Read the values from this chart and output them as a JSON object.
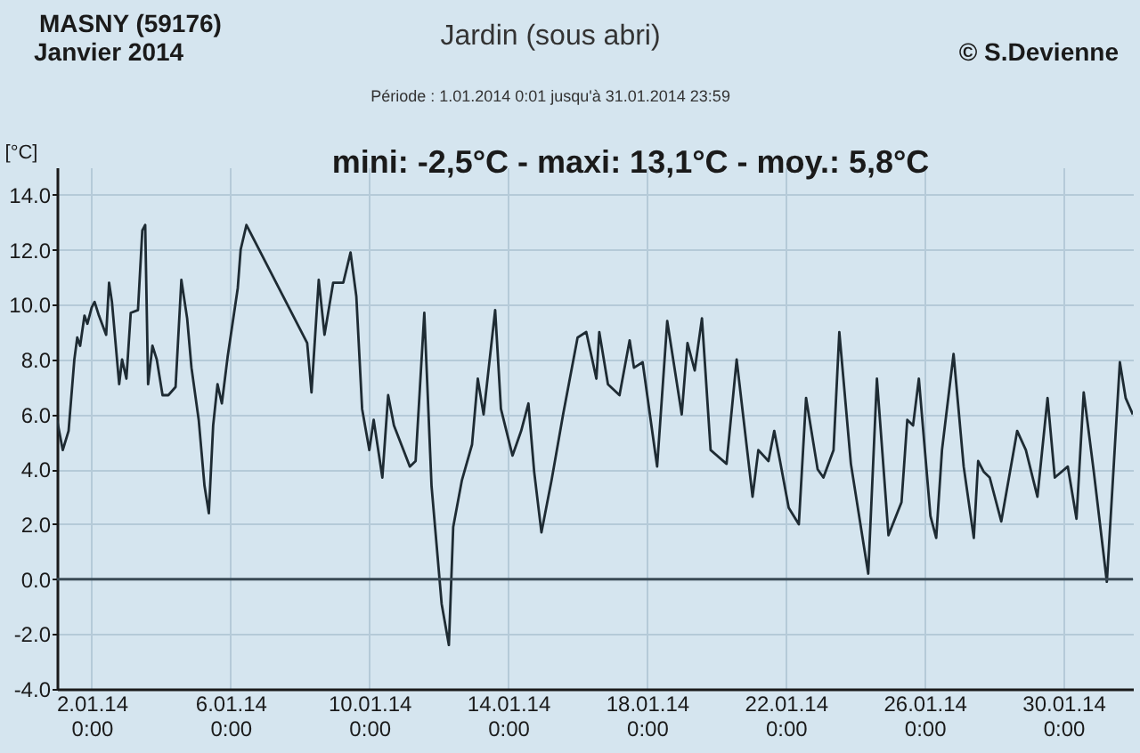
{
  "chart_data": {
    "type": "line",
    "title": "Jardin (sous abri)",
    "subtitle": "Période :  1.01.2014   0:01   jusqu'à  31.01.2014   23:59",
    "ylabel": "[°C]",
    "annotations": [
      "MASNY (59176)",
      "Janvier  2014",
      "© S.Devienne",
      "mini:  -2,5°C - maxi: 13,1°C - moy.: 5,8°C"
    ],
    "x": [
      "2014-01-01T00:01",
      "2014-01-01T04:00",
      "2014-01-01T08:00",
      "2014-01-01T12:00",
      "2014-01-01T14:00",
      "2014-01-01T16:00",
      "2014-01-01T19:00",
      "2014-01-01T21:00",
      "2014-01-02T00:00",
      "2014-01-02T02:00",
      "2014-01-02T05:00",
      "2014-01-02T10:00",
      "2014-01-02T12:00",
      "2014-01-02T14:00",
      "2014-01-02T19:00",
      "2014-01-02T21:00",
      "2014-01-03T00:00",
      "2014-01-03T03:00",
      "2014-01-03T08:00",
      "2014-01-03T11:00",
      "2014-01-03T13:00",
      "2014-01-03T15:00",
      "2014-01-03T18:00",
      "2014-01-03T21:00",
      "2014-01-04T01:00",
      "2014-01-04T05:00",
      "2014-01-04T10:00",
      "2014-01-04T14:00",
      "2014-01-04T18:00",
      "2014-01-04T21:00",
      "2014-01-05T02:00",
      "2014-01-05T06:00",
      "2014-01-05T09:00",
      "2014-01-05T12:00",
      "2014-01-05T15:00",
      "2014-01-05T18:00",
      "2014-01-05T22:00",
      "2014-01-06T05:00",
      "2014-01-06T07:00",
      "2014-01-06T11:00",
      "2014-01-08T05:00",
      "2014-01-08T08:00",
      "2014-01-08T13:00",
      "2014-01-08T17:00",
      "2014-01-08T23:00",
      "2014-01-09T06:00",
      "2014-01-09T11:00",
      "2014-01-09T15:00",
      "2014-01-09T19:00",
      "2014-01-10T00:00",
      "2014-01-10T03:00",
      "2014-01-10T09:00",
      "2014-01-10T13:00",
      "2014-01-10T17:00",
      "2014-01-11T04:00",
      "2014-01-11T08:00",
      "2014-01-11T14:00",
      "2014-01-11T19:00",
      "2014-01-12T02:00",
      "2014-01-12T07:00",
      "2014-01-12T10:00",
      "2014-01-12T16:00",
      "2014-01-12T23:00",
      "2014-01-13T03:00",
      "2014-01-13T07:00",
      "2014-01-13T15:00",
      "2014-01-13T19:00",
      "2014-01-14T03:00",
      "2014-01-14T09:00",
      "2014-01-14T14:00",
      "2014-01-14T18:00",
      "2014-01-14T23:00",
      "2014-01-15T06:00",
      "2014-01-15T14:00",
      "2014-01-16T00:00",
      "2014-01-16T06:00",
      "2014-01-16T13:00",
      "2014-01-16T15:00",
      "2014-01-16T21:00",
      "2014-01-17T05:00",
      "2014-01-17T12:00",
      "2014-01-17T15:00",
      "2014-01-17T21:00",
      "2014-01-18T07:00",
      "2014-01-18T14:00",
      "2014-01-19T00:00",
      "2014-01-19T04:00",
      "2014-01-19T09:00",
      "2014-01-19T14:00",
      "2014-01-19T20:00",
      "2014-01-20T07:00",
      "2014-01-20T14:00",
      "2014-01-21T01:00",
      "2014-01-21T05:00",
      "2014-01-21T12:00",
      "2014-01-21T16:00",
      "2014-01-21T20:00",
      "2014-01-22T02:00",
      "2014-01-22T09:00",
      "2014-01-22T14:00",
      "2014-01-22T22:00",
      "2014-01-23T02:00",
      "2014-01-23T09:00",
      "2014-01-23T13:00",
      "2014-01-23T21:00",
      "2014-01-24T09:00",
      "2014-01-24T15:00",
      "2014-01-24T23:00",
      "2014-01-25T08:00",
      "2014-01-25T12:00",
      "2014-01-25T16:00",
      "2014-01-25T20:00",
      "2014-01-26T04:00",
      "2014-01-26T08:00",
      "2014-01-26T12:00",
      "2014-01-26T20:00",
      "2014-01-27T03:00",
      "2014-01-27T10:00",
      "2014-01-27T13:00",
      "2014-01-27T17:00",
      "2014-01-27T21:00",
      "2014-01-28T05:00",
      "2014-01-28T16:00",
      "2014-01-28T22:00",
      "2014-01-29T06:00",
      "2014-01-29T13:00",
      "2014-01-29T18:00",
      "2014-01-30T03:00",
      "2014-01-30T09:00",
      "2014-01-30T14:00",
      "2014-01-30T21:00",
      "2014-01-31T06:00",
      "2014-01-31T15:00",
      "2014-01-31T19:00",
      "2014-01-31T23:59"
    ],
    "series": [
      {
        "color": "#1e2b33",
        "values": [
          5.8,
          4.7,
          5.4,
          8.0,
          8.8,
          8.5,
          9.6,
          9.3,
          9.9,
          10.1,
          9.6,
          8.9,
          10.8,
          10.1,
          7.1,
          8.0,
          7.3,
          9.7,
          9.8,
          12.7,
          12.9,
          7.1,
          8.5,
          8.0,
          6.7,
          6.7,
          7.0,
          10.9,
          9.5,
          7.7,
          5.8,
          3.4,
          2.4,
          5.6,
          7.1,
          6.4,
          8.1,
          10.6,
          12.0,
          12.9,
          8.6,
          6.8,
          10.9,
          8.9,
          10.8,
          10.8,
          11.9,
          10.3,
          6.2,
          4.7,
          5.8,
          3.7,
          6.7,
          5.6,
          4.1,
          4.3,
          9.7,
          3.4,
          -0.9,
          -2.4,
          1.9,
          3.6,
          4.9,
          7.3,
          6.0,
          9.8,
          6.2,
          4.5,
          5.4,
          6.4,
          3.9,
          1.7,
          3.6,
          6.0,
          8.8,
          9.0,
          7.3,
          9.0,
          7.1,
          6.7,
          8.7,
          7.7,
          7.9,
          4.1,
          9.4,
          6.0,
          8.6,
          7.6,
          9.5,
          4.7,
          4.2,
          8.0,
          3.0,
          4.7,
          4.3,
          5.4,
          4.3,
          2.6,
          2.0,
          6.6,
          4.0,
          3.7,
          4.7,
          9.0,
          4.2,
          0.2,
          7.3,
          1.6,
          2.8,
          5.8,
          5.6,
          7.3,
          2.3,
          1.5,
          4.7,
          8.2,
          4.1,
          1.5,
          4.3,
          3.9,
          3.7,
          2.1,
          5.4,
          4.7,
          3.0,
          6.6,
          3.7,
          4.1,
          2.2,
          6.8,
          3.9,
          -0.1,
          7.9,
          6.6,
          6.0
        ]
      }
    ],
    "xlim": [
      "2014-01-01T00:00",
      "2014-02-01T00:00"
    ],
    "xticks": [
      {
        "value": "2014-01-02T00:00",
        "label": "2.01.14 0:00"
      },
      {
        "value": "2014-01-06T00:00",
        "label": "6.01.14 0:00"
      },
      {
        "value": "2014-01-10T00:00",
        "label": "10.01.14 0:00"
      },
      {
        "value": "2014-01-14T00:00",
        "label": "14.01.14 0:00"
      },
      {
        "value": "2014-01-18T00:00",
        "label": "18.01.14 0:00"
      },
      {
        "value": "2014-01-22T00:00",
        "label": "22.01.14 0:00"
      },
      {
        "value": "2014-01-26T00:00",
        "label": "26.01.14 0:00"
      },
      {
        "value": "2014-01-30T00:00",
        "label": "30.01.14 0:00"
      }
    ],
    "ylim": [
      -4,
      15
    ],
    "yticks": [
      {
        "value": -4,
        "label": "-4.0"
      },
      {
        "value": -2,
        "label": "-2.0"
      },
      {
        "value": 0,
        "label": "0.0"
      },
      {
        "value": 2,
        "label": "2.0"
      },
      {
        "value": 4,
        "label": "4.0"
      },
      {
        "value": 6,
        "label": "6.0"
      },
      {
        "value": 8,
        "label": "8.0"
      },
      {
        "value": 10,
        "label": "10.0"
      },
      {
        "value": 12,
        "label": "12.0"
      },
      {
        "value": 14,
        "label": "14.0"
      }
    ],
    "ref_lines": [
      {
        "axis": "y",
        "value": 0,
        "color": "#3a4a55"
      }
    ],
    "grid": true,
    "marker": "none",
    "line_style": "solid"
  }
}
